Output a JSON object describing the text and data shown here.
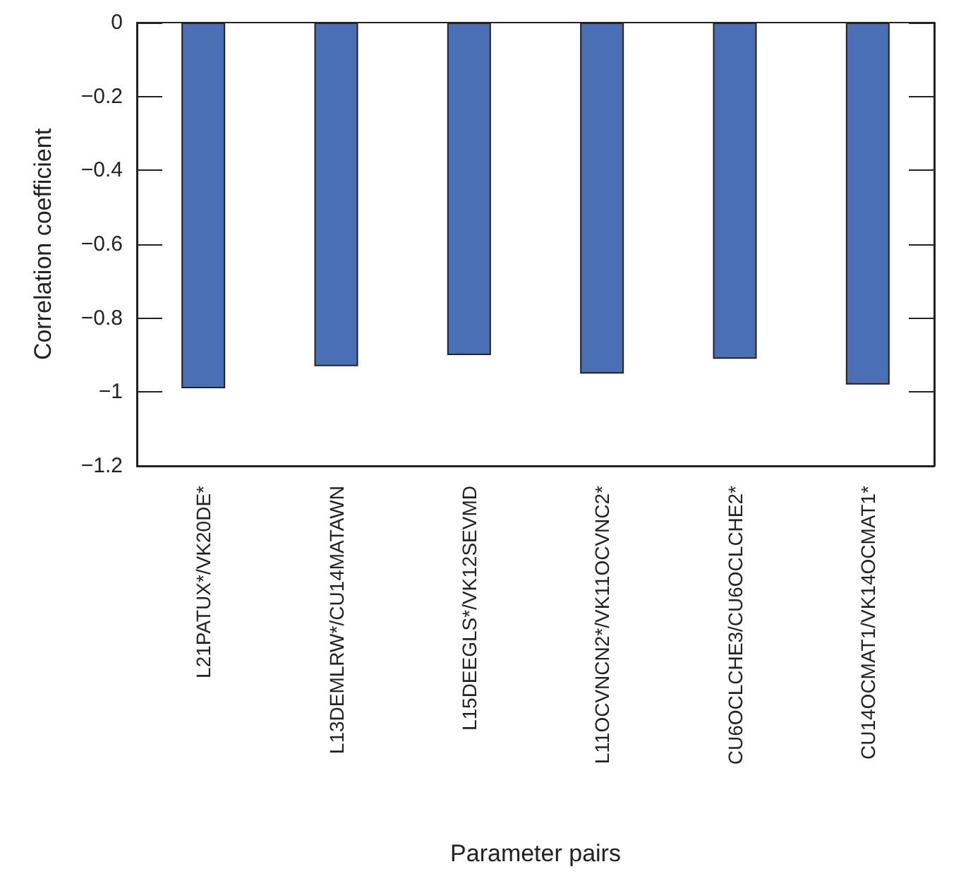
{
  "chart_data": {
    "type": "bar",
    "xlabel": "Parameter pairs",
    "ylabel": "Correlation coefficient",
    "categories": [
      "L21PATUX*/VK20DE*",
      "L13DEMLRW*/CU14MATAWN",
      "L15DEEGLS*/VK12SEVMD",
      "L11OCVNCN2*/VK11OCVNC2*",
      "CU6OCLCHE3/CU6OCLCHE2*",
      "CU14OCMAT1/VK14OCMAT1*"
    ],
    "values": [
      -0.99,
      -0.93,
      -0.9,
      -0.95,
      -0.91,
      -0.98
    ],
    "color": "#4a6fb5",
    "ylim": [
      -1.2,
      0
    ],
    "yticks": [
      -1.2,
      -1,
      -0.8,
      -0.6,
      -0.4,
      -0.2,
      0
    ]
  }
}
